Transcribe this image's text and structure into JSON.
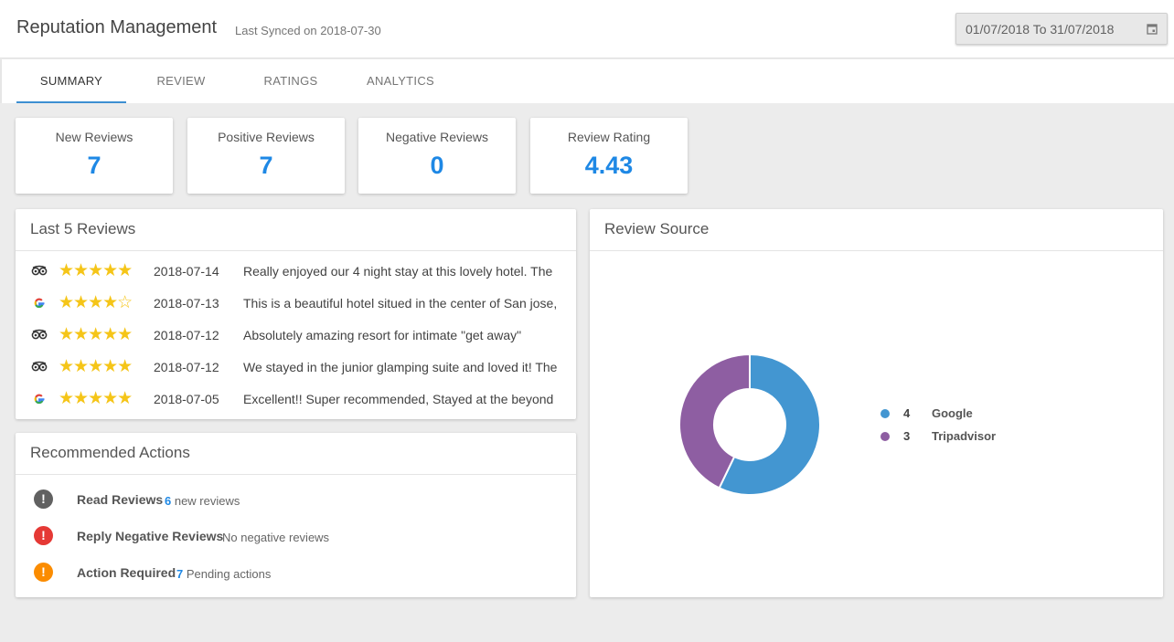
{
  "header": {
    "title": "Reputation Management",
    "sync_text": "Last Synced on 2018-07-30",
    "date_range": "01/07/2018 To 31/07/2018"
  },
  "tabs": [
    {
      "label": "SUMMARY",
      "active": true
    },
    {
      "label": "REVIEW",
      "active": false
    },
    {
      "label": "RATINGS",
      "active": false
    },
    {
      "label": "ANALYTICS",
      "active": false
    }
  ],
  "stats": [
    {
      "label": "New Reviews",
      "value": "7"
    },
    {
      "label": "Positive Reviews",
      "value": "7"
    },
    {
      "label": "Negative Reviews",
      "value": "0"
    },
    {
      "label": "Review Rating",
      "value": "4.43"
    }
  ],
  "last_reviews": {
    "title": "Last 5 Reviews",
    "items": [
      {
        "source_icon": "tripadvisor-icon",
        "rating": 5,
        "stars": "★★★★★",
        "date": "2018-07-14",
        "text": "Really enjoyed our 4 night stay at this lovely hotel. The"
      },
      {
        "source_icon": "google-icon",
        "rating": 4,
        "stars": "★★★★☆",
        "date": "2018-07-13",
        "text": "This is a beautiful hotel situed in the center of San jose,"
      },
      {
        "source_icon": "tripadvisor-icon",
        "rating": 5,
        "stars": "★★★★★",
        "date": "2018-07-12",
        "text": "Absolutely amazing resort for intimate \"get away\""
      },
      {
        "source_icon": "tripadvisor-icon",
        "rating": 5,
        "stars": "★★★★★",
        "date": "2018-07-12",
        "text": "We stayed in the junior glamping suite and loved it! The"
      },
      {
        "source_icon": "google-icon",
        "rating": 5,
        "stars": "★★★★★",
        "date": "2018-07-05",
        "text": "Excellent!! Super recommended, Stayed at the beyond"
      }
    ]
  },
  "actions": {
    "title": "Recommended Actions",
    "items": [
      {
        "name": "Read Reviews",
        "count": "6",
        "detail": " new reviews",
        "color": "#616161"
      },
      {
        "name": "Reply Negative Reviews",
        "count": "",
        "detail": "No negative reviews",
        "color": "#e53935"
      },
      {
        "name": "Action Required",
        "count": "7",
        "detail": " Pending actions",
        "color": "#fb8c00"
      }
    ]
  },
  "review_source": {
    "title": "Review Source"
  },
  "chart_data": {
    "type": "pie",
    "categories": [
      "Google",
      "Tripadvisor"
    ],
    "values": [
      4,
      3
    ],
    "colors": [
      "#4396d1",
      "#8e5ea2"
    ],
    "legend_position": "right"
  }
}
